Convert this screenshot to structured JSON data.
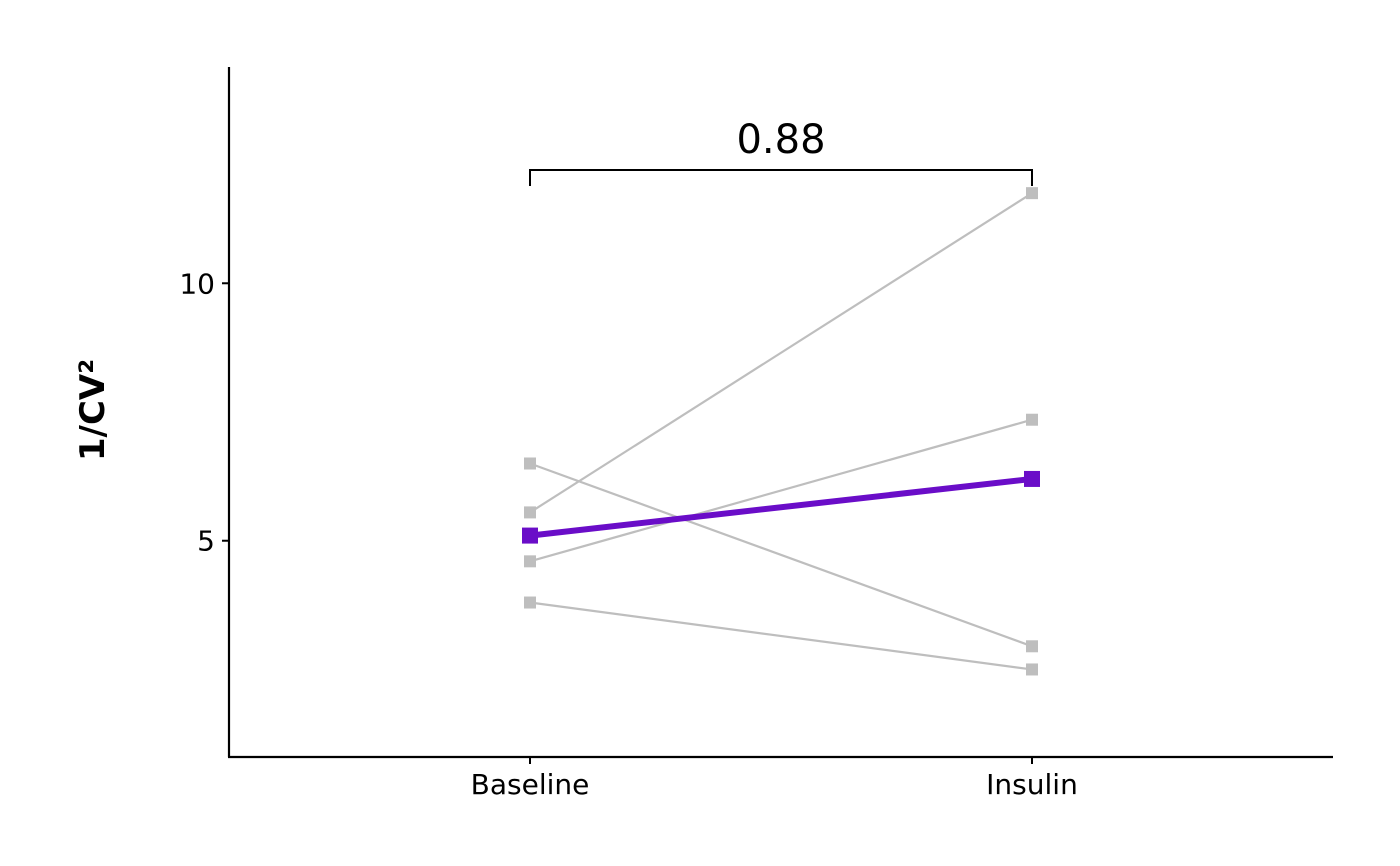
{
  "chart_data": {
    "type": "line",
    "categories": [
      "Baseline",
      "Insulin"
    ],
    "ylabel": "1/CV²",
    "ylim": [
      0.8,
      14.2
    ],
    "yticks": [
      5,
      10
    ],
    "grid": false,
    "individual_color": "#bebebe",
    "mean_color": "#6a0dc8",
    "series": [
      {
        "values": [
          5.55,
          11.75
        ]
      },
      {
        "values": [
          4.6,
          7.35
        ]
      },
      {
        "values": [
          6.5,
          2.95
        ]
      },
      {
        "values": [
          3.8,
          2.5
        ]
      }
    ],
    "mean_series": {
      "values": [
        5.1,
        6.2
      ]
    },
    "annotation": {
      "text": "0.88",
      "between": [
        "Baseline",
        "Insulin"
      ],
      "y": 12.2
    }
  }
}
